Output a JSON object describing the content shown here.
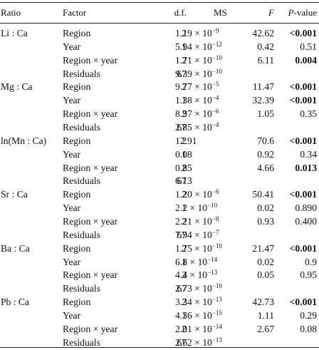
{
  "headers": {
    "ratio": "Ratio",
    "factor": "Factor",
    "df": "d.f.",
    "ms": "MS",
    "f": "F",
    "p_italic": "P",
    "p_rest": "-value"
  },
  "groups": [
    {
      "ratio": "Li : Ca",
      "rows": [
        {
          "factor": "Region",
          "df": "2",
          "ms_base": "1.19 × 10",
          "ms_exp": "−9",
          "f": "42.62",
          "p": "<0.001",
          "p_bold": true
        },
        {
          "factor": "Year",
          "df": "1",
          "ms_base": "5.94 × 10",
          "ms_exp": "−12",
          "f": "0.42",
          "p": "0.51",
          "p_bold": false
        },
        {
          "factor": "Region × year",
          "df": "2",
          "ms_base": "1.71 × 10",
          "ms_exp": "−10",
          "f": "6.11",
          "p": "0.004",
          "p_bold": true
        },
        {
          "factor": "Residuals",
          "df": "67",
          "ms_base": "9.39 × 10",
          "ms_exp": "−10",
          "f": "",
          "p": "",
          "p_bold": false
        }
      ]
    },
    {
      "ratio": "Mg : Ca",
      "rows": [
        {
          "factor": "Region",
          "df": "2",
          "ms_base": "9.77 × 10",
          "ms_exp": "−5",
          "f": "11.47",
          "p": "<0.001",
          "p_bold": true
        },
        {
          "factor": "Year",
          "df": "1",
          "ms_base": "1.38 × 10",
          "ms_exp": "−4",
          "f": "32.39",
          "p": "<0.001",
          "p_bold": true
        },
        {
          "factor": "Region × year",
          "df": "2",
          "ms_base": "8.97 × 10",
          "ms_exp": "−6",
          "f": "1.05",
          "p": "0.35",
          "p_bold": false
        },
        {
          "factor": "Residuals",
          "df": "67",
          "ms_base": "2.85 × 10",
          "ms_exp": "−4",
          "f": "",
          "p": "",
          "p_bold": false
        }
      ]
    },
    {
      "ratio": "ln(Mn : Ca)",
      "rows": [
        {
          "factor": "Region",
          "df": "2",
          "ms_base": "12.91",
          "ms_exp": "",
          "f": "70.6",
          "p": "<0.001",
          "p_bold": true
        },
        {
          "factor": "Year",
          "df": "1",
          "ms_base": "0.08",
          "ms_exp": "",
          "f": "0.92",
          "p": "0.34",
          "p_bold": false
        },
        {
          "factor": "Region × year",
          "df": "2",
          "ms_base": "0.85",
          "ms_exp": "",
          "f": "4.66",
          "p": "0.013",
          "p_bold": true
        },
        {
          "factor": "Residuals",
          "df": "67",
          "ms_base": "6.13",
          "ms_exp": "",
          "f": "",
          "p": "",
          "p_bold": false
        }
      ]
    },
    {
      "ratio": "Sr : Ca",
      "rows": [
        {
          "factor": "Region",
          "df": "2",
          "ms_base": "1.20 × 10",
          "ms_exp": "−6",
          "f": "50.41",
          "p": "<0.001",
          "p_bold": true
        },
        {
          "factor": "Year",
          "df": "1",
          "ms_base": "2.2 × 10",
          "ms_exp": "−10",
          "f": "0.02",
          "p": "0.890",
          "p_bold": false
        },
        {
          "factor": "Region × year",
          "df": "2",
          "ms_base": "2.21 × 10",
          "ms_exp": "−8",
          "f": "0.93",
          "p": "0.400",
          "p_bold": false
        },
        {
          "factor": "Residuals",
          "df": "67",
          "ms_base": "7.94 × 10",
          "ms_exp": "−7",
          "f": "",
          "p": "",
          "p_bold": false
        }
      ]
    },
    {
      "ratio": "Ba : Ca",
      "rows": [
        {
          "factor": "Region",
          "df": "2",
          "ms_base": "1.75 × 10",
          "ms_exp": "−10",
          "f": "21.47",
          "p": "<0.001",
          "p_bold": true
        },
        {
          "factor": "Year",
          "df": "1",
          "ms_base": "6.8 × 10",
          "ms_exp": "−14",
          "f": "0.02",
          "p": "0.9",
          "p_bold": false
        },
        {
          "factor": "Region × year",
          "df": "2",
          "ms_base": "4.4 × 10",
          "ms_exp": "−13",
          "f": "0.05",
          "p": "0.95",
          "p_bold": false
        },
        {
          "factor": "Residuals",
          "df": "67",
          "ms_base": "2.73 × 10",
          "ms_exp": "−10",
          "f": "",
          "p": "",
          "p_bold": false
        }
      ]
    },
    {
      "ratio": "Pb : Ca",
      "rows": [
        {
          "factor": "Region",
          "df": "2",
          "ms_base": "3.34 × 10",
          "ms_exp": "−13",
          "f": "42.73",
          "p": "<0.001",
          "p_bold": true
        },
        {
          "factor": "Year",
          "df": "1",
          "ms_base": "4.36 × 10",
          "ms_exp": "−15",
          "f": "1.11",
          "p": "0.29",
          "p_bold": false
        },
        {
          "factor": "Region × year",
          "df": "2",
          "ms_base": "2.01 × 10",
          "ms_exp": "−14",
          "f": "2.67",
          "p": "0.08",
          "p_bold": false
        },
        {
          "factor": "Residuals",
          "df": "67",
          "ms_base": "2.62 × 10",
          "ms_exp": "−13",
          "f": "",
          "p": "",
          "p_bold": false
        }
      ]
    }
  ]
}
